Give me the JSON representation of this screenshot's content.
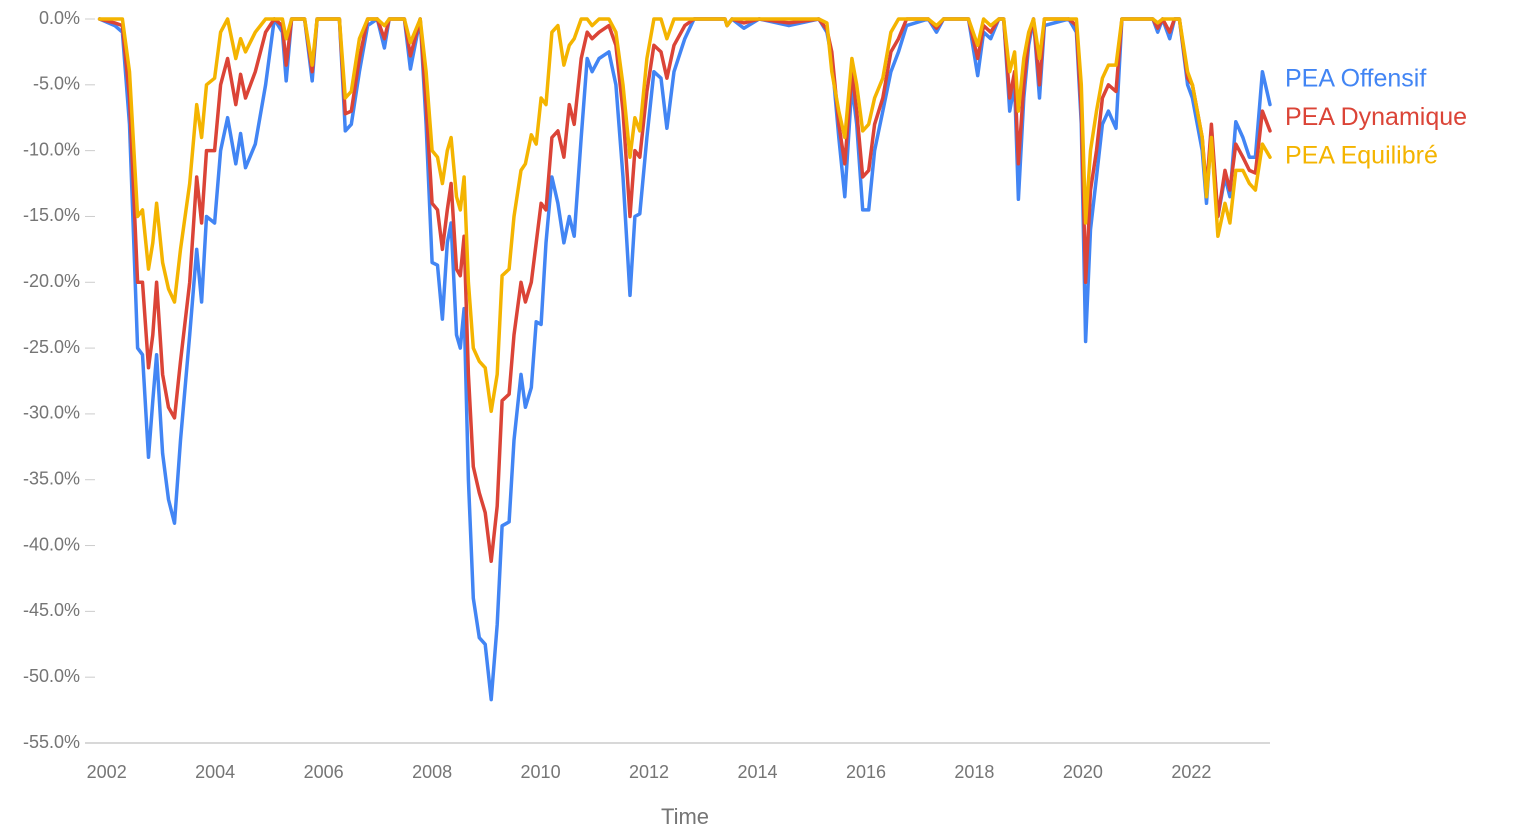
{
  "chart_data": {
    "type": "line",
    "x_label": "Time",
    "xlim": [
      2001.6,
      2023.45
    ],
    "xticks": [
      2002,
      2004,
      2006,
      2008,
      2010,
      2012,
      2014,
      2016,
      2018,
      2020,
      2022
    ],
    "ylim": [
      -55,
      0
    ],
    "yticks": [
      {
        "value": 0,
        "label": "0.0%"
      },
      {
        "value": -5,
        "label": "-5.0%"
      },
      {
        "value": -10,
        "label": "-10.0%"
      },
      {
        "value": -15,
        "label": "-15.0%"
      },
      {
        "value": -20,
        "label": "-20.0%"
      },
      {
        "value": -25,
        "label": "-25.0%"
      },
      {
        "value": -30,
        "label": "-30.0%"
      },
      {
        "value": -35,
        "label": "-35.0%"
      },
      {
        "value": -40,
        "label": "-40.0%"
      },
      {
        "value": -45,
        "label": "-45.0%"
      },
      {
        "value": -50,
        "label": "-50.0%"
      },
      {
        "value": -55,
        "label": "-55.0%"
      }
    ],
    "legend": "right",
    "x": [
      2001.87,
      2002.15,
      2002.29,
      2002.42,
      2002.57,
      2002.66,
      2002.77,
      2002.85,
      2002.92,
      2003.03,
      2003.14,
      2003.25,
      2003.36,
      2003.53,
      2003.66,
      2003.75,
      2003.84,
      2003.99,
      2004.1,
      2004.23,
      2004.38,
      2004.47,
      2004.56,
      2004.74,
      2004.93,
      2005.09,
      2005.24,
      2005.31,
      2005.41,
      2005.65,
      2005.79,
      2005.88,
      2006.29,
      2006.4,
      2006.51,
      2006.66,
      2006.81,
      2006.99,
      2007.12,
      2007.21,
      2007.49,
      2007.6,
      2007.78,
      2007.89,
      2008.0,
      2008.1,
      2008.19,
      2008.28,
      2008.35,
      2008.45,
      2008.52,
      2008.59,
      2008.67,
      2008.76,
      2008.87,
      2008.98,
      2009.09,
      2009.2,
      2009.29,
      2009.42,
      2009.51,
      2009.64,
      2009.72,
      2009.83,
      2009.92,
      2010.01,
      2010.1,
      2010.21,
      2010.32,
      2010.43,
      2010.53,
      2010.62,
      2010.75,
      2010.86,
      2010.95,
      2011.08,
      2011.26,
      2011.39,
      2011.52,
      2011.65,
      2011.74,
      2011.83,
      2011.96,
      2012.09,
      2012.22,
      2012.33,
      2012.46,
      2012.66,
      2012.83,
      2013.4,
      2013.44,
      2013.53,
      2013.75,
      2014.03,
      2014.58,
      2015.13,
      2015.28,
      2015.37,
      2015.5,
      2015.61,
      2015.74,
      2015.83,
      2015.94,
      2016.05,
      2016.16,
      2016.31,
      2016.46,
      2016.6,
      2016.75,
      2017.15,
      2017.3,
      2017.43,
      2017.89,
      2018.06,
      2018.17,
      2018.3,
      2018.45,
      2018.54,
      2018.65,
      2018.74,
      2018.81,
      2018.91,
      2019.0,
      2019.09,
      2019.2,
      2019.29,
      2019.74,
      2019.88,
      2019.97,
      2020.05,
      2020.14,
      2020.25,
      2020.36,
      2020.47,
      2020.61,
      2020.72,
      2021.29,
      2021.38,
      2021.47,
      2021.6,
      2021.69,
      2021.78,
      2021.93,
      2022.02,
      2022.11,
      2022.2,
      2022.28,
      2022.37,
      2022.49,
      2022.62,
      2022.71,
      2022.82,
      2022.95,
      2023.07,
      2023.18,
      2023.31,
      2023.45
    ],
    "series": [
      {
        "name": "PEA Offensif",
        "color": "#4285f4",
        "values": [
          0,
          -0.5,
          -1,
          -8,
          -25,
          -25.5,
          -33.3,
          -29,
          -25.5,
          -33,
          -36.5,
          -38.3,
          -32,
          -24,
          -17.5,
          -21.5,
          -15,
          -15.5,
          -10,
          -7.5,
          -11,
          -8.7,
          -11.3,
          -9.5,
          -5,
          0,
          -1,
          -4.7,
          0,
          0,
          -4.7,
          0,
          0,
          -8.5,
          -8,
          -4,
          -0.5,
          0,
          -2.2,
          0,
          0,
          -3.8,
          0,
          -8,
          -18.5,
          -18.7,
          -22.8,
          -17,
          -15.5,
          -24,
          -25,
          -22,
          -35,
          -44,
          -47,
          -47.5,
          -51.7,
          -46,
          -38.5,
          -38.2,
          -32,
          -27,
          -29.5,
          -28,
          -23,
          -23.2,
          -17,
          -12,
          -14,
          -17,
          -15,
          -16.5,
          -9,
          -3,
          -4,
          -3,
          -2.5,
          -5,
          -12,
          -21,
          -15,
          -14.8,
          -9,
          -4,
          -4.5,
          -8.3,
          -4,
          -1.5,
          0,
          0,
          -0.5,
          0,
          -0.7,
          0,
          -0.5,
          0,
          -1,
          -3,
          -9,
          -13.5,
          -5,
          -8,
          -14.5,
          -14.5,
          -10,
          -7,
          -4,
          -2.5,
          -0.5,
          0,
          -1,
          0,
          0,
          -4.3,
          -1,
          -1.5,
          0,
          0,
          -7,
          -5,
          -13.7,
          -6,
          -2,
          0,
          -6,
          -0.5,
          0,
          -1,
          -8,
          -24.5,
          -16,
          -12,
          -8,
          -7,
          -8.3,
          0,
          0,
          -1,
          0,
          -1.5,
          0,
          0,
          -5,
          -6,
          -8,
          -10,
          -14,
          -8.5,
          -15,
          -12,
          -13.5,
          -7.8,
          -9,
          -10.5,
          -10.5,
          -4,
          -6.5
        ]
      },
      {
        "name": "PEA Dynamique",
        "color": "#db4437",
        "values": [
          0,
          -0.3,
          -0.5,
          -6,
          -20,
          -20,
          -26.5,
          -24,
          -20,
          -27,
          -29.5,
          -30.3,
          -26,
          -20,
          -12,
          -15.5,
          -10,
          -10,
          -5,
          -3,
          -6.5,
          -4.2,
          -6,
          -4,
          -1,
          0,
          -0.5,
          -3.5,
          0,
          0,
          -4,
          0,
          0,
          -7.2,
          -7,
          -3,
          0,
          0,
          -1.5,
          0,
          0,
          -2.8,
          0,
          -6.5,
          -14,
          -14.5,
          -17.5,
          -14.5,
          -12.5,
          -19,
          -19.5,
          -16.5,
          -27,
          -34,
          -36,
          -37.5,
          -41.2,
          -37,
          -29,
          -28.5,
          -24,
          -20,
          -21.5,
          -20,
          -17,
          -14,
          -14.5,
          -9,
          -8.5,
          -10.5,
          -6.5,
          -8,
          -3,
          -1,
          -1.5,
          -1,
          -0.5,
          -2,
          -7,
          -15,
          -10,
          -10.5,
          -5.5,
          -2,
          -2.5,
          -4.5,
          -2,
          -0.5,
          0,
          0,
          -0.5,
          0,
          -0.3,
          0,
          -0.3,
          0,
          -0.8,
          -2.5,
          -8,
          -11,
          -4,
          -7,
          -12,
          -11.5,
          -8,
          -6,
          -2.5,
          -1.5,
          0,
          0,
          -0.7,
          0,
          0,
          -3,
          -0.5,
          -1,
          0,
          0,
          -6,
          -4,
          -11,
          -5,
          -1.5,
          0,
          -5,
          0,
          0,
          -0.5,
          -7,
          -20,
          -13,
          -10,
          -6,
          -5,
          -5.5,
          0,
          0,
          -0.7,
          0,
          -1,
          0,
          0,
          -4.5,
          -5,
          -7,
          -9,
          -13,
          -8,
          -15,
          -11.5,
          -13,
          -9.5,
          -10.5,
          -11.5,
          -11.7,
          -7,
          -8.5
        ]
      },
      {
        "name": "PEA Equilibré",
        "color": "#f4b400",
        "values": [
          0,
          0,
          0,
          -4,
          -15,
          -14.5,
          -19,
          -17,
          -14,
          -18.5,
          -20.5,
          -21.5,
          -17.5,
          -12.5,
          -6.5,
          -9,
          -5,
          -4.5,
          -1,
          0,
          -3,
          -1.5,
          -2.5,
          -1,
          0,
          0,
          0,
          -1.5,
          0,
          0,
          -3.5,
          0,
          0,
          -6,
          -5.5,
          -1.5,
          0,
          0,
          -0.5,
          0,
          0,
          -1.8,
          0,
          -4,
          -10,
          -10.5,
          -12.5,
          -10,
          -9,
          -13.5,
          -14.5,
          -12,
          -20,
          -25,
          -26,
          -26.5,
          -29.8,
          -27,
          -19.5,
          -19,
          -15,
          -11.5,
          -11,
          -8.8,
          -9.5,
          -6,
          -6.5,
          -1,
          -0.5,
          -3.5,
          -2,
          -1.5,
          0,
          0,
          -0.5,
          0,
          0,
          -1,
          -5,
          -10.5,
          -7.5,
          -8.5,
          -3,
          0,
          0,
          -1.5,
          0,
          0,
          0,
          0,
          -0.5,
          0,
          0,
          0,
          0,
          0,
          -0.3,
          -4,
          -7,
          -9,
          -3,
          -5,
          -8.5,
          -8,
          -6,
          -4.5,
          -1,
          0,
          0,
          0,
          -0.5,
          0,
          0,
          -2,
          0,
          -0.5,
          0,
          0,
          -4,
          -2.5,
          -7,
          -3,
          -1,
          0,
          -3,
          0,
          0,
          0,
          -5,
          -15.5,
          -10,
          -7,
          -4.5,
          -3.5,
          -3.5,
          0,
          0,
          -0.3,
          0,
          0,
          0,
          0,
          -4,
          -5,
          -7,
          -9,
          -13.5,
          -9,
          -16.5,
          -14,
          -15.5,
          -11.5,
          -11.5,
          -12.5,
          -13,
          -9.5,
          -10.5
        ]
      }
    ]
  }
}
